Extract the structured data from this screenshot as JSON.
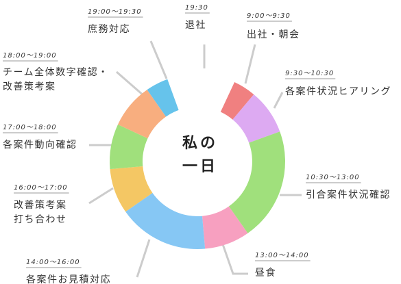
{
  "chart_data": {
    "type": "pie",
    "title_lines": [
      "私の",
      "一日"
    ],
    "slices": [
      {
        "time": "9:00〜9:30",
        "label": [
          "出社・朝会"
        ],
        "color": "#f08080"
      },
      {
        "time": "9:30〜10:30",
        "label": [
          "各案件状況ヒアリング"
        ],
        "color": "#ddaaf2"
      },
      {
        "time": "10:30〜13:00",
        "label": [
          "引合案件状況確認"
        ],
        "color": "#a0e07c"
      },
      {
        "time": "13:00〜14:00",
        "label": [
          "昼食"
        ],
        "color": "#f7a0c0"
      },
      {
        "time": "14:00〜16:00",
        "label": [
          "各案件お見積対応"
        ],
        "color": "#86c7f4"
      },
      {
        "time": "16:00〜17:00",
        "label": [
          "改善策考案",
          "打ち合わせ"
        ],
        "color": "#f4c764"
      },
      {
        "time": "17:00〜18:00",
        "label": [
          "各案件動向確認"
        ],
        "color": "#a0e07c"
      },
      {
        "time": "18:00〜19:00",
        "label": [
          "チーム全体数字確認・",
          "改善策考案"
        ],
        "color": "#f8ae7f"
      },
      {
        "time": "19:00〜19:30",
        "label": [
          "庶務対応"
        ],
        "color": "#66c3eb"
      }
    ],
    "end_marker": {
      "time": "19:30",
      "label": [
        "退社"
      ]
    }
  }
}
